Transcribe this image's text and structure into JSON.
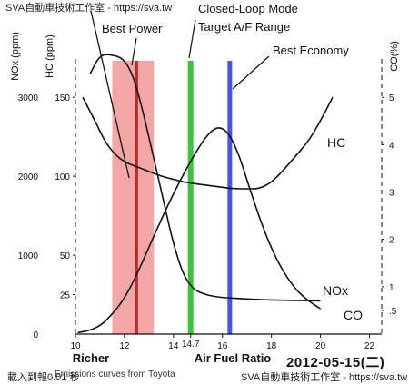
{
  "watermarks": {
    "top": "SVA自動車技術工作室 - https://sva.tw",
    "bottom_left": "載入到報0.01 秒",
    "bottom_right": "SVA自動車技術工作室 - https://sva.tw"
  },
  "caption": "Emissions curves from Toyota",
  "date_stamp": "2012-05-15(二)",
  "chart_data": {
    "type": "line",
    "xlabel": "Air Fuel Ratio",
    "x_left_label": "Richer",
    "x_ticks": [
      "10",
      "12",
      "14",
      "14.7",
      "16",
      "18",
      "20",
      "22"
    ],
    "x_tick_values": [
      10,
      12,
      14,
      14.7,
      16,
      18,
      20,
      22
    ],
    "xlim": [
      10,
      22.5
    ],
    "left_axis_labels": {
      "nox": "NOx (ppm)",
      "hc": "HC (ppm)"
    },
    "nox_ticks": [
      "0",
      "1000",
      "2000",
      "3000"
    ],
    "nox_tick_values": [
      0,
      1000,
      2000,
      3000
    ],
    "nox_ylim": [
      0,
      3600
    ],
    "hc_ticks": [
      "25",
      "50",
      "100",
      "150"
    ],
    "hc_tick_values": [
      25,
      50,
      100,
      150
    ],
    "hc_ylim": [
      0,
      180
    ],
    "right_axis_label": "CO(%)",
    "co_ticks": [
      ".5",
      "1",
      "2",
      "3",
      "4",
      "5"
    ],
    "co_tick_values": [
      0.5,
      1,
      2,
      3,
      4,
      5
    ],
    "co_ylim": [
      0,
      6
    ],
    "series": [
      {
        "name": "HC",
        "axis": "hc",
        "x": [
          10.3,
          10.8,
          11.2,
          11.6,
          12.0,
          12.5,
          13.0,
          13.5,
          14.0,
          14.5,
          15.0,
          15.5,
          16.0,
          16.5,
          17.0,
          17.5,
          18.0,
          18.5,
          19.0,
          19.5,
          20.0,
          20.5
        ],
        "values": [
          150,
          135,
          122,
          114,
          109,
          106,
          103,
          100,
          98,
          96,
          95,
          94,
          93,
          92,
          92,
          92,
          96,
          104,
          113,
          122,
          135,
          150
        ]
      },
      {
        "name": "NOx",
        "axis": "nox",
        "x": [
          10.1,
          10.5,
          11.0,
          11.5,
          12.0,
          12.5,
          13.0,
          13.5,
          14.0,
          14.5,
          15.0,
          15.5,
          15.9,
          16.3,
          16.7,
          17.0,
          17.5,
          18.0,
          18.5,
          19.0,
          19.5,
          20.0
        ],
        "values": [
          20,
          40,
          100,
          250,
          450,
          750,
          1100,
          1450,
          1780,
          2080,
          2350,
          2570,
          2630,
          2530,
          2250,
          1950,
          1480,
          1080,
          780,
          560,
          420,
          320
        ]
      },
      {
        "name": "CO",
        "axis": "co",
        "x": [
          10.6,
          11.0,
          11.5,
          12.0,
          12.4,
          12.8,
          13.2,
          13.6,
          14.0,
          14.4,
          14.8,
          15.2,
          15.6,
          16.0,
          17.0,
          18.0,
          19.0,
          20.0
        ],
        "values": [
          5.5,
          5.9,
          5.9,
          5.8,
          5.4,
          4.6,
          3.7,
          2.8,
          1.9,
          1.25,
          0.95,
          0.85,
          0.8,
          0.77,
          0.74,
          0.72,
          0.71,
          0.7
        ]
      }
    ],
    "regions": [
      {
        "label": "Best Power",
        "x_from": 11.5,
        "x_to": 13.2,
        "line_at": 12.5,
        "color": "#f4a6a6",
        "line_color": "#c0282a"
      },
      {
        "label": "Closed-Loop Mode Target A/F Range",
        "x_at": 14.7,
        "color": "#3cc43c"
      },
      {
        "label": "Best Economy",
        "x_at": 16.3,
        "color": "#4a52e8"
      }
    ],
    "grid": false,
    "legend": "none"
  }
}
